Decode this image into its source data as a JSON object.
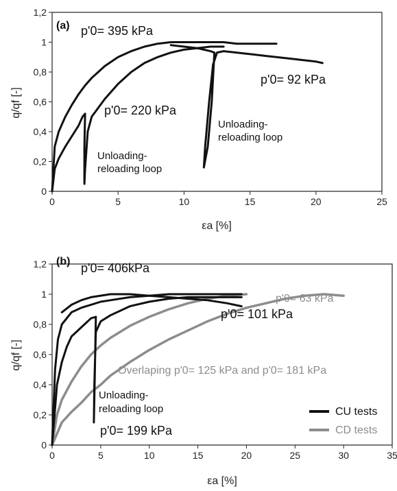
{
  "colors": {
    "cu": "#111111",
    "cd": "#8c8c8c",
    "axis": "#222222"
  },
  "chart_data": [
    {
      "type": "line",
      "panel_label": "(a)",
      "xlabel": "εa [%]",
      "ylabel": "q/qf [-]",
      "xlim": [
        0,
        25
      ],
      "ylim": [
        0,
        1.2
      ],
      "xticks": [
        "0",
        "5",
        "10",
        "15",
        "20",
        "25"
      ],
      "yticks": [
        "0",
        "0,2",
        "0,4",
        "0,6",
        "0,8",
        "1",
        "1,2"
      ],
      "grid": false,
      "series": [
        {
          "color": "cu",
          "x": [
            0,
            0.2,
            0.5,
            1,
            1.5,
            2,
            2.5,
            3,
            3.5,
            4,
            5,
            6,
            7,
            8,
            9,
            10,
            11,
            12,
            13,
            14,
            15,
            16,
            17
          ],
          "y": [
            0,
            0.3,
            0.4,
            0.5,
            0.58,
            0.65,
            0.71,
            0.76,
            0.8,
            0.84,
            0.9,
            0.94,
            0.97,
            0.99,
            1.0,
            1.0,
            1.0,
            1.0,
            1.0,
            0.99,
            0.99,
            0.99,
            0.99
          ]
        },
        {
          "color": "cu",
          "x": [
            0,
            0.2,
            0.5,
            1,
            1.5,
            2,
            2.3,
            2.5,
            2.45,
            2.45,
            2.5,
            2.7,
            3,
            3.5,
            4,
            5,
            6,
            7,
            8,
            9,
            10,
            11,
            12,
            13
          ],
          "y": [
            0,
            0.15,
            0.22,
            0.3,
            0.37,
            0.44,
            0.5,
            0.52,
            0.3,
            0.05,
            0.15,
            0.4,
            0.5,
            0.56,
            0.62,
            0.72,
            0.8,
            0.86,
            0.9,
            0.93,
            0.95,
            0.96,
            0.97,
            0.97
          ]
        },
        {
          "color": "cu",
          "x": [
            9,
            10,
            11,
            11.5,
            12,
            12.3,
            12.1,
            11.8,
            11.5,
            11.6,
            11.9,
            12.2,
            12.5,
            13,
            14,
            15,
            16,
            17,
            18,
            19,
            20,
            20.5
          ],
          "y": [
            0.98,
            0.97,
            0.96,
            0.95,
            0.94,
            0.93,
            0.6,
            0.3,
            0.16,
            0.3,
            0.6,
            0.85,
            0.93,
            0.94,
            0.93,
            0.92,
            0.91,
            0.9,
            0.89,
            0.88,
            0.87,
            0.86
          ]
        }
      ],
      "annotations": [
        {
          "text": "p'0= 395 kPa"
        },
        {
          "text": "p'0= 220 kPa"
        },
        {
          "text": "p'0= 92 kPa"
        },
        {
          "text": "Unloading-"
        },
        {
          "text": "reloading loop"
        },
        {
          "text": "Unloading-"
        },
        {
          "text": "reloading loop"
        }
      ]
    },
    {
      "type": "line",
      "panel_label": "(b)",
      "xlabel": "εa [%]",
      "ylabel": "q/qf [-]",
      "xlim": [
        0,
        35
      ],
      "ylim": [
        0,
        1.2
      ],
      "xticks": [
        "0",
        "5",
        "10",
        "15",
        "20",
        "25",
        "30",
        "35"
      ],
      "yticks": [
        "0",
        "0,2",
        "0,4",
        "0,6",
        "0,8",
        "1",
        "1,2"
      ],
      "grid": false,
      "legend_position": "bottom-right",
      "legend": [
        {
          "label": "CU tests",
          "color": "cu"
        },
        {
          "label": "CD tests",
          "color": "cd"
        }
      ],
      "series": [
        {
          "color": "cd",
          "x": [
            0,
            1,
            2,
            3,
            4,
            5,
            6,
            8,
            10,
            12,
            14,
            16,
            18,
            20,
            22,
            24,
            26,
            28,
            30
          ],
          "y": [
            0,
            0.15,
            0.22,
            0.28,
            0.35,
            0.4,
            0.46,
            0.55,
            0.63,
            0.7,
            0.76,
            0.82,
            0.87,
            0.91,
            0.94,
            0.97,
            0.99,
            1.0,
            0.99
          ]
        },
        {
          "color": "cd",
          "x": [
            0,
            0.5,
            1,
            2,
            3,
            4,
            5,
            6,
            7,
            8,
            9,
            10,
            12,
            14,
            16,
            18,
            20
          ],
          "y": [
            0,
            0.2,
            0.3,
            0.42,
            0.52,
            0.6,
            0.66,
            0.71,
            0.75,
            0.79,
            0.82,
            0.85,
            0.9,
            0.94,
            0.97,
            0.99,
            1.0
          ]
        },
        {
          "color": "cu",
          "x": [
            0,
            0.3,
            0.6,
            1,
            2,
            3,
            4,
            5,
            6,
            8,
            10,
            12,
            14,
            16,
            18,
            19.5
          ],
          "y": [
            0,
            0.5,
            0.7,
            0.8,
            0.88,
            0.91,
            0.93,
            0.95,
            0.96,
            0.98,
            0.99,
            1.0,
            1.0,
            1.0,
            1.0,
            1.0
          ]
        },
        {
          "color": "cu",
          "x": [
            0,
            0.5,
            1,
            1.5,
            2,
            3,
            4,
            4.5,
            4.4,
            4.3,
            4.35,
            4.5,
            5,
            6,
            8,
            10,
            12,
            14,
            16,
            18,
            19.5
          ],
          "y": [
            0,
            0.4,
            0.55,
            0.65,
            0.72,
            0.78,
            0.84,
            0.85,
            0.5,
            0.15,
            0.4,
            0.75,
            0.82,
            0.86,
            0.92,
            0.95,
            0.97,
            0.98,
            0.98,
            0.98,
            0.98
          ]
        },
        {
          "color": "cu",
          "x": [
            1,
            2,
            3,
            4,
            6,
            8,
            10,
            12,
            14,
            16,
            18,
            19.5
          ],
          "y": [
            0.88,
            0.93,
            0.96,
            0.98,
            1.0,
            1.0,
            0.99,
            0.98,
            0.97,
            0.96,
            0.94,
            0.92
          ]
        }
      ],
      "annotations": [
        {
          "text": "p'0= 406kPa"
        },
        {
          "text": "p'0= 63 kPa"
        },
        {
          "text": "p'0= 101 kPa"
        },
        {
          "text": "Overlaping p'0= 125 kPa and p'0= 181 kPa"
        },
        {
          "text": "Unloading-"
        },
        {
          "text": "reloading loop"
        },
        {
          "text": "p'0= 199 kPa"
        }
      ]
    }
  ]
}
